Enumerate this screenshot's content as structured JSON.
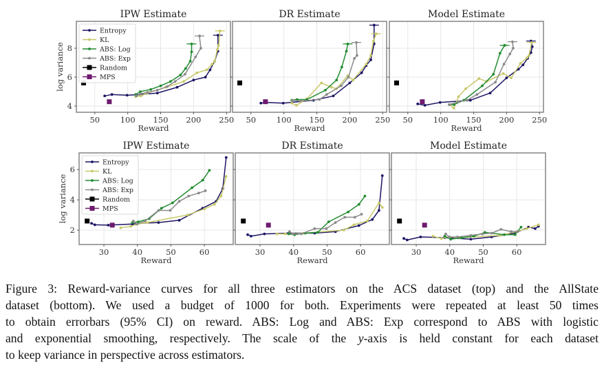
{
  "colors": {
    "Entropy": "#1b1464",
    "KL": "#c8c86a",
    "ABS: Log": "#228b30",
    "ABS: Exp": "#8a8a8a",
    "Random": "#000000",
    "MPS": "#6e1a6e",
    "grid": "#e6e6e6",
    "frame": "#8c8c8c"
  },
  "legend_order": [
    "Entropy",
    "KL",
    "ABS: Log",
    "ABS: Exp",
    "Random",
    "MPS"
  ],
  "chart_data": [
    {
      "type": "line",
      "title": "IPW Estimate",
      "row": "top",
      "xlabel": "Reward",
      "ylabel": "log variance",
      "xlim": [
        22,
        256
      ],
      "ylim": [
        3.57,
        9.86
      ],
      "xticks": [
        50,
        100,
        150,
        200,
        250
      ],
      "yticks": [
        4,
        6,
        8
      ],
      "grid": true,
      "legend": "top-left",
      "series": [
        {
          "name": "Entropy",
          "x": [
            65,
            76,
            99,
            119,
            145,
            175,
            200,
            218,
            225,
            232,
            237,
            237
          ],
          "y": [
            4.7,
            4.8,
            4.75,
            4.8,
            4.9,
            5.3,
            5.8,
            6.0,
            6.5,
            7.1,
            7.8,
            8.9
          ]
        },
        {
          "name": "KL",
          "x": [
            112,
            120,
            130,
            158,
            185,
            205,
            220,
            228,
            232,
            236,
            238,
            240
          ],
          "y": [
            4.65,
            4.7,
            4.9,
            5.3,
            5.7,
            6.3,
            6.5,
            6.9,
            7.1,
            7.9,
            8.2,
            9.2
          ]
        },
        {
          "name": "ABS: Log",
          "x": [
            112,
            119,
            135,
            150,
            165,
            180,
            188,
            195,
            197,
            197
          ],
          "y": [
            4.8,
            5.0,
            5.15,
            5.4,
            5.7,
            6.15,
            6.6,
            7.1,
            7.75,
            8.3
          ]
        },
        {
          "name": "ABS: Exp",
          "x": [
            113,
            120,
            130,
            145,
            160,
            172,
            187,
            203,
            211,
            209
          ],
          "y": [
            4.7,
            4.85,
            4.95,
            5.1,
            5.35,
            5.7,
            6.2,
            7.4,
            8.0,
            8.85
          ]
        },
        {
          "name": "Random",
          "x": [
            33
          ],
          "y": [
            5.6
          ]
        },
        {
          "name": "MPS",
          "x": [
            72
          ],
          "y": [
            4.3
          ]
        }
      ]
    },
    {
      "type": "line",
      "title": "DR Estimate",
      "row": "top",
      "xlabel": "Reward",
      "ylabel": "",
      "xlim": [
        22,
        256
      ],
      "ylim": [
        3.57,
        9.86
      ],
      "xticks": [
        50,
        100,
        150,
        200,
        250
      ],
      "yticks": [
        4,
        6,
        8
      ],
      "grid": true,
      "series": [
        {
          "name": "Entropy",
          "x": [
            65,
            73,
            99,
            145,
            175,
            200,
            218,
            225,
            232,
            237,
            237
          ],
          "y": [
            4.2,
            4.25,
            4.2,
            4.4,
            4.7,
            5.6,
            6.3,
            6.8,
            7.2,
            8.3,
            9.6
          ]
        },
        {
          "name": "KL",
          "x": [
            112,
            119,
            135,
            157,
            172,
            180,
            197,
            205,
            225,
            232,
            236,
            240
          ],
          "y": [
            4.2,
            4.05,
            4.5,
            5.6,
            5.3,
            5.2,
            6.1,
            5.8,
            6.9,
            7.5,
            8.5,
            9.0
          ]
        },
        {
          "name": "ABS: Log",
          "x": [
            112,
            120,
            135,
            163,
            180,
            188,
            195,
            197
          ],
          "y": [
            4.4,
            4.45,
            4.45,
            5.1,
            5.8,
            6.7,
            7.8,
            8.3
          ]
        },
        {
          "name": "ABS: Exp",
          "x": [
            113,
            125,
            154,
            165,
            187,
            198,
            207,
            211,
            210
          ],
          "y": [
            4.4,
            4.35,
            4.45,
            4.8,
            5.4,
            6.0,
            7.3,
            7.5,
            8.4
          ]
        },
        {
          "name": "Random",
          "x": [
            33
          ],
          "y": [
            5.6
          ]
        },
        {
          "name": "MPS",
          "x": [
            72
          ],
          "y": [
            4.3
          ]
        }
      ]
    },
    {
      "type": "line",
      "title": "Model Estimate",
      "row": "top",
      "xlabel": "Reward",
      "ylabel": "",
      "xlim": [
        22,
        256
      ],
      "ylim": [
        3.57,
        9.86
      ],
      "xticks": [
        50,
        100,
        150,
        200,
        250
      ],
      "yticks": [
        4,
        6,
        8
      ],
      "grid": true,
      "series": [
        {
          "name": "Entropy",
          "x": [
            65,
            76,
            99,
            145,
            175,
            200,
            218,
            225,
            232,
            237,
            239,
            237
          ],
          "y": [
            4.15,
            4.05,
            4.25,
            4.4,
            4.9,
            5.95,
            6.55,
            6.85,
            7.3,
            7.7,
            8.1,
            8.5
          ]
        },
        {
          "name": "KL",
          "x": [
            113,
            120,
            127,
            138,
            158,
            170,
            195,
            207,
            221,
            231,
            234,
            238
          ],
          "y": [
            4.1,
            3.85,
            4.65,
            5.2,
            5.9,
            5.7,
            6.25,
            5.95,
            6.95,
            7.35,
            7.5,
            8.4
          ]
        },
        {
          "name": "ABS: Log",
          "x": [
            113,
            120,
            135,
            163,
            180,
            190,
            197,
            197
          ],
          "y": [
            4.1,
            4.1,
            4.4,
            5.4,
            6.2,
            7.65,
            8.2,
            8.2
          ]
        },
        {
          "name": "ABS: Exp",
          "x": [
            113,
            127,
            140,
            155,
            183,
            196,
            205,
            210,
            209
          ],
          "y": [
            4.1,
            4.3,
            4.4,
            4.8,
            5.65,
            6.9,
            7.6,
            8.0,
            8.45
          ]
        },
        {
          "name": "Random",
          "x": [
            33
          ],
          "y": [
            5.6
          ]
        },
        {
          "name": "MPS",
          "x": [
            72
          ],
          "y": [
            4.3
          ]
        }
      ]
    },
    {
      "type": "line",
      "title": "IPW Estimate",
      "row": "bottom",
      "xlabel": "Reward",
      "ylabel": "log variance",
      "xlim": [
        22.6,
        68.6
      ],
      "ylim": [
        1.05,
        7.1
      ],
      "xticks": [
        30,
        40,
        50,
        60
      ],
      "yticks": [
        2,
        4,
        6
      ],
      "grid": true,
      "legend": "top-left",
      "series": [
        {
          "name": "Entropy",
          "x": [
            26.3,
            27.3,
            31.3,
            38.5,
            40.3,
            46.3,
            52.5,
            59.5,
            63.5,
            65.5,
            66.5
          ],
          "y": [
            2.45,
            2.35,
            2.33,
            2.4,
            2.45,
            2.5,
            2.65,
            3.45,
            3.9,
            4.75,
            6.8
          ]
        },
        {
          "name": "KL",
          "x": [
            35,
            38,
            40,
            43,
            55,
            60,
            63,
            65,
            66.5
          ],
          "y": [
            2.15,
            2.25,
            2.4,
            2.5,
            3.0,
            3.4,
            3.7,
            4.25,
            5.55
          ]
        },
        {
          "name": "ABS: Log",
          "x": [
            38.5,
            40.3,
            43.5,
            47.2,
            50.5,
            56.3,
            59.5,
            61.5
          ],
          "y": [
            2.5,
            2.55,
            2.75,
            3.45,
            3.8,
            4.8,
            5.3,
            5.95
          ]
        },
        {
          "name": "ABS: Exp",
          "x": [
            38.8,
            39.8,
            42.3,
            46.3,
            49.8,
            52.5,
            55.3,
            58.3,
            60.3
          ],
          "y": [
            2.6,
            2.4,
            2.6,
            3.3,
            3.3,
            3.9,
            4.25,
            4.45,
            4.6
          ]
        },
        {
          "name": "Random",
          "x": [
            25
          ],
          "y": [
            2.6
          ]
        },
        {
          "name": "MPS",
          "x": [
            32.5
          ],
          "y": [
            2.33
          ]
        }
      ]
    },
    {
      "type": "line",
      "title": "DR Estimate",
      "row": "bottom",
      "xlabel": "Reward",
      "ylabel": "",
      "xlim": [
        22.6,
        68.6
      ],
      "ylim": [
        1.05,
        7.1
      ],
      "xticks": [
        30,
        40,
        50,
        60
      ],
      "yticks": [
        2,
        4,
        6
      ],
      "grid": true,
      "series": [
        {
          "name": "Entropy",
          "x": [
            26.3,
            27.3,
            31.3,
            38.5,
            46.3,
            52.5,
            59.5,
            63.5,
            65.5,
            66.5
          ],
          "y": [
            1.7,
            1.6,
            1.75,
            1.8,
            1.8,
            1.9,
            2.3,
            2.7,
            3.3,
            5.6
          ]
        },
        {
          "name": "KL",
          "x": [
            35,
            37.5,
            40,
            43,
            55,
            58,
            62,
            65.5,
            66.5
          ],
          "y": [
            1.75,
            1.75,
            1.75,
            1.8,
            2.0,
            2.35,
            2.6,
            3.8,
            3.5
          ]
        },
        {
          "name": "ABS: Log",
          "x": [
            38.5,
            40.3,
            43.5,
            47.2,
            50.5,
            56.3,
            59.5,
            61.3
          ],
          "y": [
            1.75,
            1.7,
            1.8,
            1.85,
            2.55,
            3.2,
            3.7,
            4.25
          ]
        },
        {
          "name": "ABS: Exp",
          "x": [
            38.8,
            39.8,
            42.3,
            46.3,
            49.8,
            52.5,
            55.3,
            58.3,
            60.3
          ],
          "y": [
            1.9,
            1.75,
            1.75,
            2.1,
            2.1,
            2.5,
            2.85,
            2.85,
            3.05
          ]
        },
        {
          "name": "Random",
          "x": [
            25
          ],
          "y": [
            2.6
          ]
        },
        {
          "name": "MPS",
          "x": [
            32.5
          ],
          "y": [
            2.33
          ]
        }
      ]
    },
    {
      "type": "line",
      "title": "Model Estimate",
      "row": "bottom",
      "xlabel": "Reward",
      "ylabel": "",
      "xlim": [
        22.6,
        68.6
      ],
      "ylim": [
        1.05,
        7.1
      ],
      "xticks": [
        30,
        40,
        50,
        60
      ],
      "yticks": [
        2,
        4,
        6
      ],
      "grid": true,
      "series": [
        {
          "name": "Entropy",
          "x": [
            26.3,
            27.3,
            31.3,
            38.5,
            46.3,
            52.5,
            59.5,
            63.5,
            65.5,
            66.5
          ],
          "y": [
            1.45,
            1.35,
            1.55,
            1.5,
            1.4,
            1.55,
            1.8,
            2.2,
            2.1,
            2.25
          ]
        },
        {
          "name": "KL",
          "x": [
            35,
            37.5,
            40,
            43,
            55,
            60,
            63,
            66.5
          ],
          "y": [
            1.6,
            1.45,
            1.55,
            1.5,
            1.65,
            1.9,
            2.1,
            2.35
          ]
        },
        {
          "name": "ABS: Log",
          "x": [
            38.5,
            40.3,
            43.5,
            47.2,
            50.5,
            56.3,
            59.5,
            61.3
          ],
          "y": [
            1.6,
            1.4,
            1.5,
            1.6,
            1.85,
            1.7,
            1.7,
            2.2
          ]
        },
        {
          "name": "ABS: Exp",
          "x": [
            38.8,
            39.8,
            42.3,
            46.3,
            49.8,
            52.5,
            55.3,
            58.3,
            60.3
          ],
          "y": [
            1.75,
            1.55,
            1.55,
            1.65,
            1.75,
            1.8,
            2.05,
            1.9,
            1.9
          ]
        },
        {
          "name": "Random",
          "x": [
            25
          ],
          "y": [
            2.6
          ]
        },
        {
          "name": "MPS",
          "x": [
            32.5
          ],
          "y": [
            2.33
          ]
        }
      ]
    }
  ],
  "caption": {
    "lines": [
      "Figure 3: Reward-variance curves for all three estimators on the ACS dataset (top) and the AllState",
      "dataset (bottom). We used a budget of 1000 for both. Experiments were repeated at least 50 times",
      "to obtain errorbars (95% CI) on reward. ABS: Log and ABS: Exp correspond to ABS with logistic",
      "and exponential smoothing, respectively. The scale of the ",
      "to keep variance in perspective across estimators."
    ],
    "line4_italic": "y",
    "line4_tail": "-axis is held constant for each dataset"
  }
}
